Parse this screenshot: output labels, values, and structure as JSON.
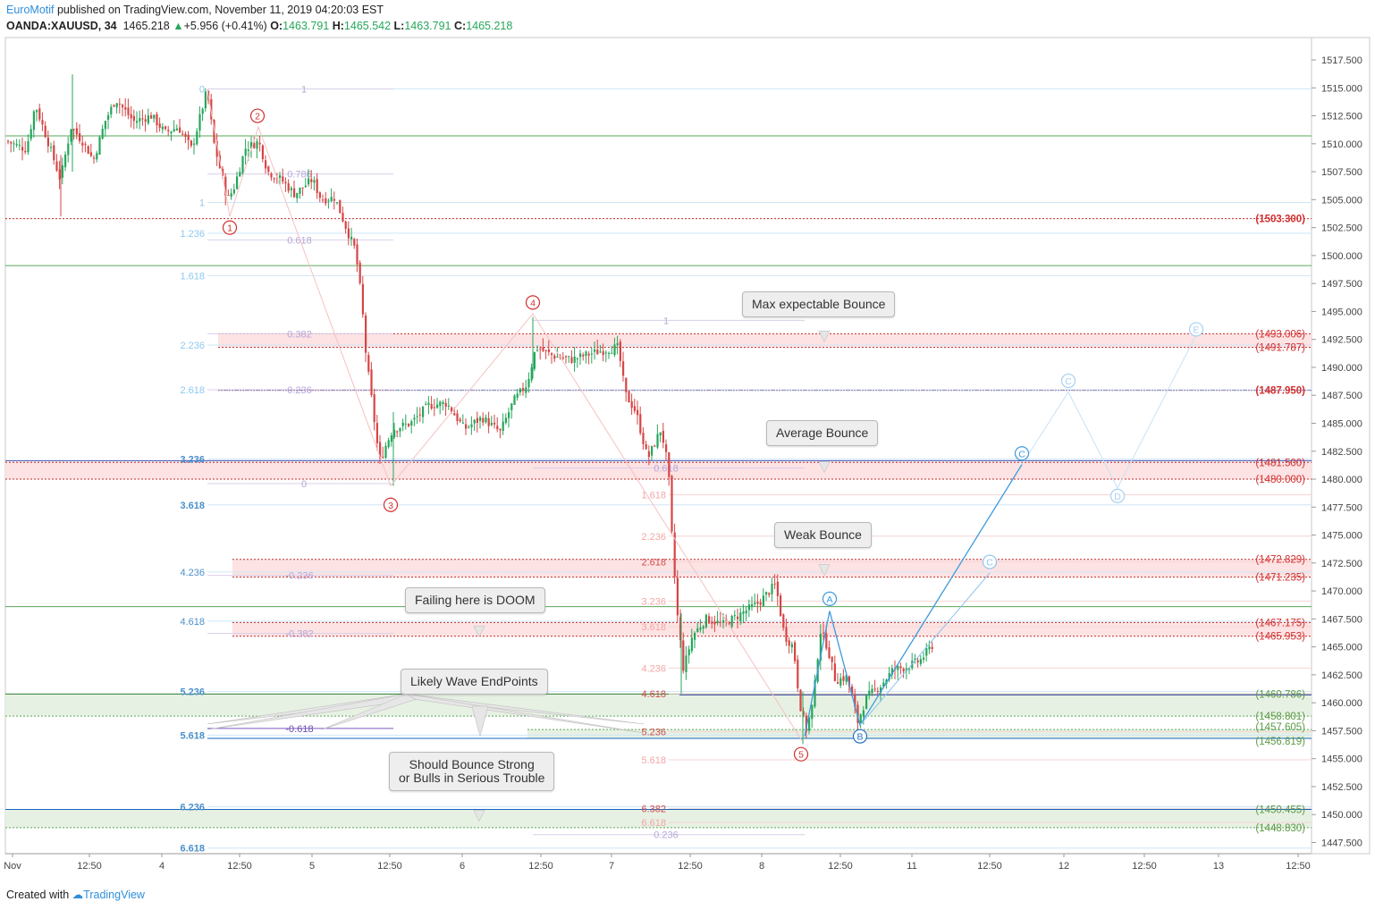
{
  "header": {
    "author": "EuroMotif",
    "published": " published on TradingView.com, November 11, 2019 04:20:03 EST",
    "symbol": "OANDA:XAUUSD, 34",
    "last": "1465.218",
    "change": "+5.956 (+0.41%)",
    "open_label": "O:",
    "open": "1463.791",
    "high_label": "H:",
    "high": "1465.542",
    "low_label": "L:",
    "low": "1463.791",
    "close_label": "C:",
    "close": "1465.218"
  },
  "footer": {
    "created_with": "Created with",
    "brand": "TradingView"
  },
  "colors": {
    "up": "#26a65b",
    "down": "#d64545",
    "red_label": "#d32f2f",
    "green_label": "#5b9a45",
    "fib_blue": "#8ec8ee",
    "fib_purple": "#b7a6d8",
    "fib_pink": "#f2a6a6",
    "wave_blue": "#3d9be0"
  },
  "chart_data": {
    "type": "candlestick",
    "title": "",
    "y_axis": {
      "min": 1446.5,
      "max": 1519.5,
      "position": "right",
      "ticks": [
        "1517.500",
        "1515.000",
        "1512.500",
        "1510.000",
        "1507.500",
        "1505.000",
        "1502.500",
        "1500.000",
        "1497.500",
        "1495.000",
        "1492.500",
        "1490.000",
        "1487.500",
        "1485.000",
        "1482.500",
        "1480.000",
        "1477.500",
        "1475.000",
        "1472.500",
        "1470.000",
        "1467.500",
        "1465.000",
        "1462.500",
        "1460.000",
        "1457.500",
        "1455.000",
        "1452.500",
        "1450.000",
        "1447.500"
      ]
    },
    "x_axis": {
      "labels": [
        "Nov",
        "12:50",
        "4",
        "12:50",
        "5",
        "12:50",
        "6",
        "12:50",
        "7",
        "12:50",
        "8",
        "12:50",
        "11",
        "12:50",
        "12",
        "12:50",
        "13",
        "12:50"
      ]
    },
    "price_labels": [
      {
        "text": "(1503.300)",
        "price": 1503.3,
        "color": "red"
      },
      {
        "text": "(1493.006)",
        "price": 1493.006,
        "color": "red"
      },
      {
        "text": "(1491.787)",
        "price": 1491.787,
        "color": "red"
      },
      {
        "text": "(1487.950)",
        "price": 1487.95,
        "color": "red"
      },
      {
        "text": "(1481.500)",
        "price": 1481.5,
        "color": "red"
      },
      {
        "text": "(1480.000)",
        "price": 1480.0,
        "color": "red"
      },
      {
        "text": "(1472.829)",
        "price": 1472.829,
        "color": "red"
      },
      {
        "text": "(1471.235)",
        "price": 1471.235,
        "color": "red"
      },
      {
        "text": "(1467.175)",
        "price": 1467.175,
        "color": "red"
      },
      {
        "text": "(1465.953)",
        "price": 1465.953,
        "color": "red"
      },
      {
        "text": "(1460.786)",
        "price": 1460.786,
        "color": "green"
      },
      {
        "text": "(1458.801)",
        "price": 1458.801,
        "color": "green"
      },
      {
        "text": "(1457.605)",
        "price": 1457.605,
        "color": "green"
      },
      {
        "text": "(1456.819)",
        "price": 1456.819,
        "color": "green"
      },
      {
        "text": "(1450.455)",
        "price": 1450.455,
        "color": "green"
      },
      {
        "text": "(1448.830)",
        "price": 1448.83,
        "color": "green"
      }
    ],
    "fib_blue_ext": [
      "0",
      "1",
      "1.236",
      "1.618",
      "2.236",
      "2.618",
      "3.236",
      "3.618",
      "4.236",
      "4.618",
      "5.236",
      "5.618",
      "6.236",
      "6.618"
    ],
    "fib_purple_ret": [
      "1",
      "0.786",
      "0.618",
      "0.382",
      "0.236",
      "0",
      "-0.236",
      "-0.382",
      "-0.618",
      "1",
      "0.618",
      "0.236"
    ],
    "fib_pink_ext": [
      "1.618",
      "2.236",
      "2.618",
      "3.236",
      "3.618",
      "4.236",
      "4.618",
      "5.236",
      "5.618",
      "6.382",
      "6.618"
    ],
    "wave_labels": [
      "1",
      "2",
      "3",
      "4",
      "5",
      "A",
      "B",
      "C",
      "C",
      "C",
      "D",
      "E"
    ],
    "annotations": [
      "Max expectable Bounce",
      "Average Bounce",
      "Weak Bounce",
      "Failing here is DOOM",
      "Likely Wave EndPoints",
      "Should Bounce Strong",
      "or Bulls in Serious Trouble"
    ]
  }
}
